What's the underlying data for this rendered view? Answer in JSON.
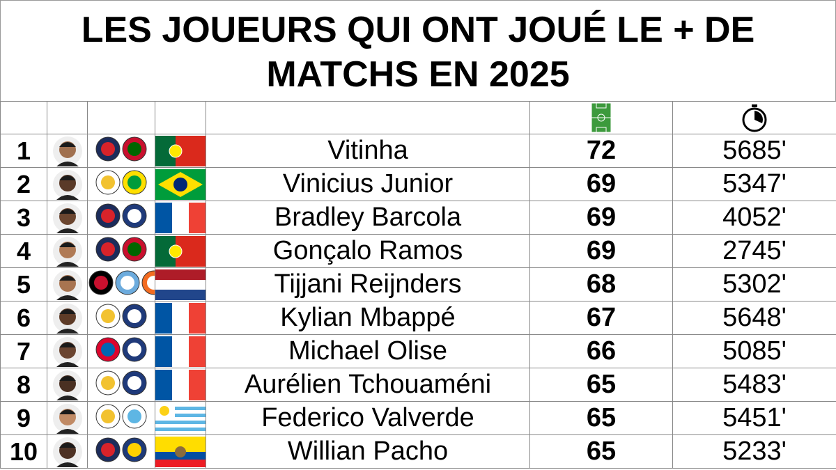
{
  "title": "LES JOUEURS QUI ONT JOUÉ LE + DE MATCHS EN 2025",
  "table": {
    "rows": [
      [
        "1",
        "Vitinha",
        "72",
        "5685'"
      ],
      [
        "2",
        "Vinicius Junior",
        "69",
        "5347'"
      ],
      [
        "3",
        "Bradley Barcola",
        "69",
        "4052'"
      ],
      [
        "4",
        "Gonçalo Ramos",
        "69",
        "2745'"
      ],
      [
        "5",
        "Tijjani Reijnders",
        "68",
        "5302'"
      ],
      [
        "6",
        "Kylian Mbappé",
        "67",
        "5648'"
      ],
      [
        "7",
        "Michael Olise",
        "66",
        "5085'"
      ],
      [
        "8",
        "Aurélien Tchouaméni",
        "65",
        "5483'"
      ],
      [
        "9",
        "Federico Valverde",
        "65",
        "5451'"
      ],
      [
        "10",
        "Willian Pacho",
        "65",
        "5233'"
      ]
    ]
  }
}
